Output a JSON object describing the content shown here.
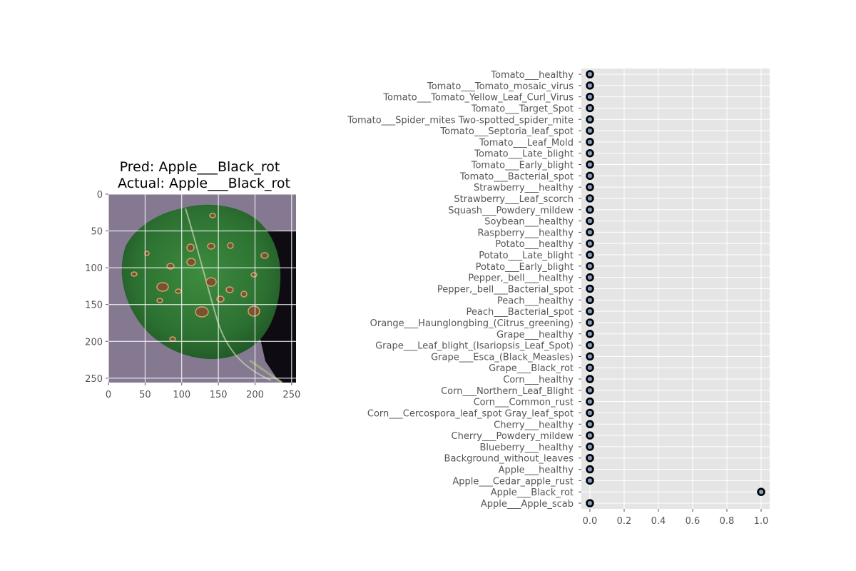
{
  "chart_data": [
    {
      "type": "image",
      "title_lines": [
        "Pred: Apple___Black_rot",
        "Actual: Apple___Black_rot"
      ],
      "xlim": [
        0,
        256
      ],
      "ylim": [
        256,
        0
      ],
      "x_ticks": [
        0,
        50,
        100,
        150,
        200,
        250
      ],
      "y_ticks": [
        0,
        50,
        100,
        150,
        200,
        250
      ],
      "x_tick_labels": [
        "0",
        "50",
        "100",
        "150",
        "200",
        "250"
      ],
      "y_tick_labels": [
        "0",
        "50",
        "100",
        "150",
        "200",
        "250"
      ],
      "grid": true,
      "colors": {
        "background": "#8a7f98",
        "leaf": "#2f7a33",
        "shadow": "#0d0a10"
      }
    },
    {
      "type": "scatter",
      "grid": true,
      "xlim": [
        -0.05,
        1.05
      ],
      "x_ticks": [
        0.0,
        0.2,
        0.4,
        0.6,
        0.8,
        1.0
      ],
      "x_tick_labels": [
        "0.0",
        "0.2",
        "0.4",
        "0.6",
        "0.8",
        "1.0"
      ],
      "categories": [
        "Apple___Apple_scab",
        "Apple___Black_rot",
        "Apple___Cedar_apple_rust",
        "Apple___healthy",
        "Background_without_leaves",
        "Blueberry___healthy",
        "Cherry___Powdery_mildew",
        "Cherry___healthy",
        "Corn___Cercospora_leaf_spot Gray_leaf_spot",
        "Corn___Common_rust",
        "Corn___Northern_Leaf_Blight",
        "Corn___healthy",
        "Grape___Black_rot",
        "Grape___Esca_(Black_Measles)",
        "Grape___Leaf_blight_(Isariopsis_Leaf_Spot)",
        "Grape___healthy",
        "Orange___Haunglongbing_(Citrus_greening)",
        "Peach___Bacterial_spot",
        "Peach___healthy",
        "Pepper,_bell___Bacterial_spot",
        "Pepper,_bell___healthy",
        "Potato___Early_blight",
        "Potato___Late_blight",
        "Potato___healthy",
        "Raspberry___healthy",
        "Soybean___healthy",
        "Squash___Powdery_mildew",
        "Strawberry___Leaf_scorch",
        "Strawberry___healthy",
        "Tomato___Bacterial_spot",
        "Tomato___Early_blight",
        "Tomato___Late_blight",
        "Tomato___Leaf_Mold",
        "Tomato___Septoria_leaf_spot",
        "Tomato___Spider_mites Two-spotted_spider_mite",
        "Tomato___Target_Spot",
        "Tomato___Tomato_Yellow_Leaf_Curl_Virus",
        "Tomato___Tomato_mosaic_virus",
        "Tomato___healthy"
      ],
      "values": [
        0.0,
        1.0,
        0.0,
        0.0,
        0.0,
        0.0,
        0.0,
        0.0,
        0.0,
        0.0,
        0.0,
        0.0,
        0.0,
        0.0,
        0.0,
        0.0,
        0.0,
        0.0,
        0.0,
        0.0,
        0.0,
        0.0,
        0.0,
        0.0,
        0.0,
        0.0,
        0.0,
        0.0,
        0.0,
        0.0,
        0.0,
        0.0,
        0.0,
        0.0,
        0.0,
        0.0,
        0.0,
        0.0,
        0.0
      ],
      "colors": {
        "axes_bg": "#e5e5e5",
        "grid": "#ffffff",
        "marker_edge": "#000000",
        "marker_face": "#4c6b9a"
      }
    }
  ]
}
